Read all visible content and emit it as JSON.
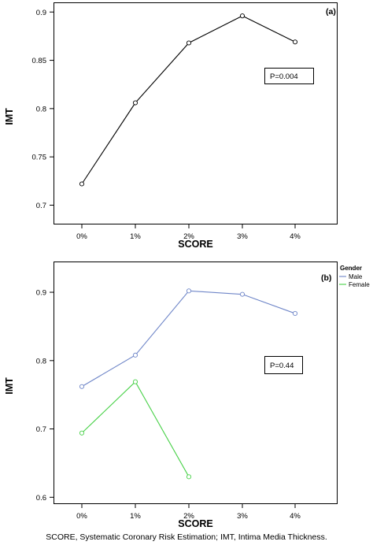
{
  "caption": "SCORE, Systematic Coronary Risk Estimation; IMT, Intima Media Thickness.",
  "chart_data": [
    {
      "type": "line",
      "panel_label": "(a)",
      "categories": [
        "0%",
        "1%",
        "2%",
        "3%",
        "4%"
      ],
      "series": [
        {
          "values": [
            0.722,
            0.806,
            0.868,
            0.896,
            0.869
          ],
          "color": "#000000"
        }
      ],
      "xlabel": "SCORE",
      "ylabel": "IMT",
      "ylim": [
        0.68,
        0.91
      ],
      "yticks": [
        0.7,
        0.75,
        0.8,
        0.85,
        0.9
      ],
      "ytick_labels": [
        "0.7",
        "0.75",
        "0.8",
        "0.85",
        "0.9"
      ],
      "annotation": "P=0.004",
      "grid": false
    },
    {
      "type": "line",
      "panel_label": "(b)",
      "categories": [
        "0%",
        "1%",
        "2%",
        "3%",
        "4%"
      ],
      "series": [
        {
          "name": "Male",
          "values": [
            0.762,
            0.808,
            0.902,
            0.897,
            0.869
          ],
          "color": "#6f86c8"
        },
        {
          "name": "Female",
          "values": [
            0.694,
            0.769,
            0.63,
            null,
            null
          ],
          "color": "#48d148"
        }
      ],
      "legend_title": "Gender",
      "legend_position": "top-right",
      "xlabel": "SCORE",
      "ylabel": "IMT",
      "ylim": [
        0.59,
        0.945
      ],
      "yticks": [
        0.6,
        0.7,
        0.8,
        0.9
      ],
      "ytick_labels": [
        "0.6",
        "0.7",
        "0.8",
        "0.9"
      ],
      "annotation": "P=0.44",
      "grid": false
    }
  ]
}
